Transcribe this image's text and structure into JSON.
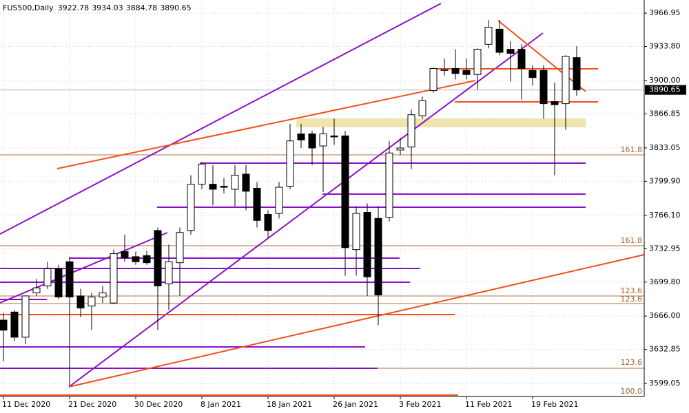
{
  "chart_data": {
    "type": "candlestick",
    "title": "FUS500,Daily",
    "header_values": [
      3922.78,
      3934.03,
      3884.78,
      3890.65
    ],
    "last_price": 3890.65,
    "categories": [
      "11 Dec 2020",
      null,
      null,
      null,
      null,
      null,
      "21 Dec 2020",
      null,
      null,
      null,
      null,
      null,
      "30 Dec 2020",
      null,
      null,
      null,
      null,
      null,
      "8 Jan 2021",
      null,
      null,
      null,
      null,
      null,
      "18 Jan 2021",
      null,
      null,
      null,
      null,
      null,
      "26 Jan 2021",
      null,
      null,
      null,
      null,
      null,
      "3 Feb 2021",
      null,
      null,
      null,
      null,
      null,
      "11 Feb 2021",
      null,
      null,
      null,
      null,
      null,
      "19 Feb 2021",
      null,
      null,
      null,
      null
    ],
    "open": [
      3662,
      3670,
      3645,
      3689,
      3696,
      3713,
      3720,
      3686,
      3676,
      3685,
      3679,
      3730,
      3725,
      3726,
      3751,
      3698,
      3719,
      3751,
      3797,
      3797,
      3795,
      3792,
      3807,
      3793,
      3767,
      3768,
      3795,
      3847,
      3847,
      3835,
      3845,
      3845,
      3732,
      3769,
      3763,
      3764,
      3831,
      3834,
      3865,
      3890,
      3910,
      3912,
      3910,
      3906,
      3936,
      3951,
      3931,
      3931,
      3910,
      3910,
      3879,
      3877,
      3922.78
    ],
    "high": [
      3669,
      3672,
      3687,
      3703,
      3720,
      3717,
      3724,
      3693,
      3689,
      3696,
      3732,
      3747,
      3730,
      3731,
      3754,
      3737,
      3754,
      3806,
      3819,
      3816,
      3803,
      3816,
      3816,
      3799,
      3771,
      3799,
      3857,
      3857,
      3850,
      3854,
      3862,
      3850,
      3775,
      3778,
      3775,
      3840,
      3843,
      3871,
      3884,
      3913,
      3922,
      3931,
      3922,
      3932,
      3960,
      3960,
      3939,
      3936,
      3915,
      3915,
      3898,
      3925,
      3934.03
    ],
    "low": [
      3621,
      3641,
      3638,
      3686,
      3693,
      3683,
      3597,
      3665,
      3652,
      3679,
      3678,
      3720,
      3717,
      3717,
      3652,
      3672,
      3686,
      3747,
      3792,
      3776,
      3788,
      3775,
      3771,
      3754,
      3744,
      3763,
      3792,
      3833,
      3816,
      3789,
      3836,
      3706,
      3706,
      3686,
      3657,
      3760,
      3826,
      3812,
      3862,
      3888,
      3905,
      3901,
      3901,
      3891,
      3932,
      3925,
      3899,
      3881,
      3895,
      3862,
      3806,
      3851,
      3884.78
    ],
    "close": [
      3652,
      3645,
      3686,
      3694,
      3713,
      3685,
      3685,
      3674,
      3685,
      3689,
      3728,
      3724,
      3720,
      3719,
      3696,
      3720,
      3749,
      3797,
      3817,
      3792,
      3794,
      3806,
      3790,
      3761,
      3751,
      3794,
      3840,
      3841,
      3833,
      3847,
      3844,
      3734,
      3768,
      3705,
      3687,
      3828,
      3833,
      3866,
      3880,
      3912,
      3911,
      3907,
      3906,
      3931,
      3953,
      3928,
      3927,
      3912,
      3903,
      3877,
      3876,
      3924,
      3890.65
    ],
    "ylim": [
      3586.8,
      3980
    ],
    "yticks": [
      3966.95,
      {
        "value": 3933.8,
        "label": "3933.80"
      },
      {
        "value": 3900,
        "label": "3900.00"
      },
      3866.85,
      3833.05,
      {
        "value": 3799.9,
        "label": "3799.90"
      },
      {
        "value": 3766.1,
        "label": "3766.10"
      },
      3732.95,
      {
        "value": 3699.8,
        "label": "3699.80"
      },
      {
        "value": 3666,
        "label": "3666.00"
      },
      3632.85,
      3599.05
    ],
    "grid": true,
    "bull_color": "#ffffff",
    "bear_color": "#000000",
    "annotations": [
      "161.8",
      "161.8",
      "123.6",
      "123.6",
      "123.6",
      "100.0"
    ]
  }
}
